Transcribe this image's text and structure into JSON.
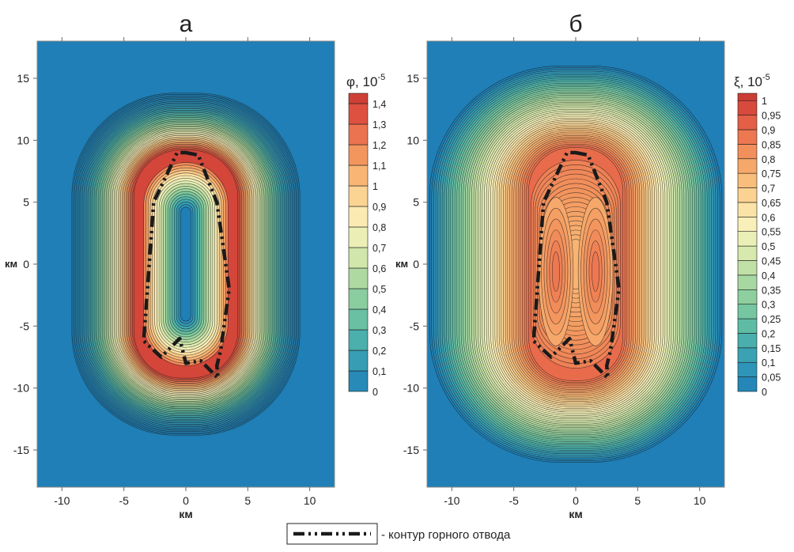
{
  "chart_data": [
    {
      "type": "heatmap",
      "panel_label": "а",
      "xlabel": "км",
      "ylabel": "км",
      "xlim": [
        -12,
        12
      ],
      "ylim": [
        -18,
        18
      ],
      "x_ticks": [
        -10,
        -5,
        0,
        5,
        10
      ],
      "y_ticks": [
        15,
        10,
        5,
        0,
        -5,
        -10,
        -15
      ],
      "x_tick_labels": [
        "-10",
        "-5",
        "0",
        "5",
        "10"
      ],
      "y_tick_labels": [
        "15",
        "10",
        "5",
        "0",
        "-5",
        "-10",
        "-15"
      ],
      "colorbar": {
        "title_symbol": "φ",
        "title_scale": "10",
        "title_exponent": "-5",
        "min": 0,
        "max": 1.45,
        "levels": [
          0,
          0.1,
          0.2,
          0.3,
          0.4,
          0.5,
          0.6,
          0.7,
          0.8,
          0.9,
          1,
          1.1,
          1.2,
          1.3,
          1.4
        ],
        "level_labels": [
          "0",
          "0,1",
          "0,2",
          "0,3",
          "0,4",
          "0,5",
          "0,6",
          "0,7",
          "0,8",
          "0,9",
          "1",
          "1,1",
          "1,2",
          "1,3",
          "1,4"
        ]
      },
      "field_max_value": 1.4,
      "contour_outline": [
        [
          0,
          9
        ],
        [
          1,
          8.8
        ],
        [
          2.5,
          5
        ],
        [
          3.5,
          -2
        ],
        [
          2.8,
          -7
        ],
        [
          2.5,
          -8.2
        ],
        [
          2.6,
          -9.2
        ],
        [
          1.2,
          -7.8
        ],
        [
          0,
          -8
        ],
        [
          -0.5,
          -6
        ],
        [
          -2,
          -7.5
        ],
        [
          -3.4,
          -6.2
        ],
        [
          -2.6,
          5
        ],
        [
          -0.7,
          9
        ],
        [
          0,
          9
        ]
      ]
    },
    {
      "type": "heatmap",
      "panel_label": "б",
      "xlabel": "км",
      "ylabel": "км",
      "xlim": [
        -12,
        12
      ],
      "ylim": [
        -18,
        18
      ],
      "x_ticks": [
        -10,
        -5,
        0,
        5,
        10
      ],
      "y_ticks": [
        15,
        10,
        5,
        0,
        -5,
        -10,
        -15
      ],
      "x_tick_labels": [
        "-10",
        "-5",
        "0",
        "5",
        "10"
      ],
      "y_tick_labels": [
        "15",
        "10",
        "5",
        "0",
        "-5",
        "-10",
        "-15"
      ],
      "colorbar": {
        "title_symbol": "ξ",
        "title_scale": "10",
        "title_exponent": "-5",
        "min": 0,
        "max": 1.025,
        "levels": [
          0,
          0.05,
          0.1,
          0.15,
          0.2,
          0.25,
          0.3,
          0.35,
          0.4,
          0.45,
          0.5,
          0.55,
          0.6,
          0.65,
          0.7,
          0.75,
          0.8,
          0.85,
          0.9,
          0.95,
          1
        ],
        "level_labels": [
          "0",
          "0,05",
          "0,1",
          "0,15",
          "0,2",
          "0,25",
          "0,3",
          "0,35",
          "0,4",
          "0,45",
          "0,5",
          "0,55",
          "0,6",
          "0,65",
          "0,7",
          "0,75",
          "0,8",
          "0,85",
          "0,9",
          "0,95",
          "1"
        ]
      },
      "field_max_value": 0.9,
      "contour_outline": [
        [
          0,
          9
        ],
        [
          1,
          8.8
        ],
        [
          2.5,
          5
        ],
        [
          3.5,
          -2
        ],
        [
          2.8,
          -7
        ],
        [
          2.5,
          -8.2
        ],
        [
          2.6,
          -9.2
        ],
        [
          1.2,
          -7.8
        ],
        [
          0,
          -8
        ],
        [
          -0.5,
          -6
        ],
        [
          -2,
          -7.5
        ],
        [
          -3.4,
          -6.2
        ],
        [
          -2.6,
          5
        ],
        [
          -0.7,
          9
        ],
        [
          0,
          9
        ]
      ]
    }
  ],
  "legend": {
    "text": "- контур горного отвода"
  },
  "colors": {
    "ramp": [
      "#1f7fb6",
      "#2f95b8",
      "#3fa7b0",
      "#5cbba6",
      "#7dc99f",
      "#a3d6a0",
      "#c8e3a6",
      "#e6efb5",
      "#fbf0b9",
      "#fbd898",
      "#f9bb78",
      "#f49a60",
      "#ec7550",
      "#df5240",
      "#c83a33"
    ],
    "outline": "#1a1a1a",
    "frame": "#888888"
  }
}
